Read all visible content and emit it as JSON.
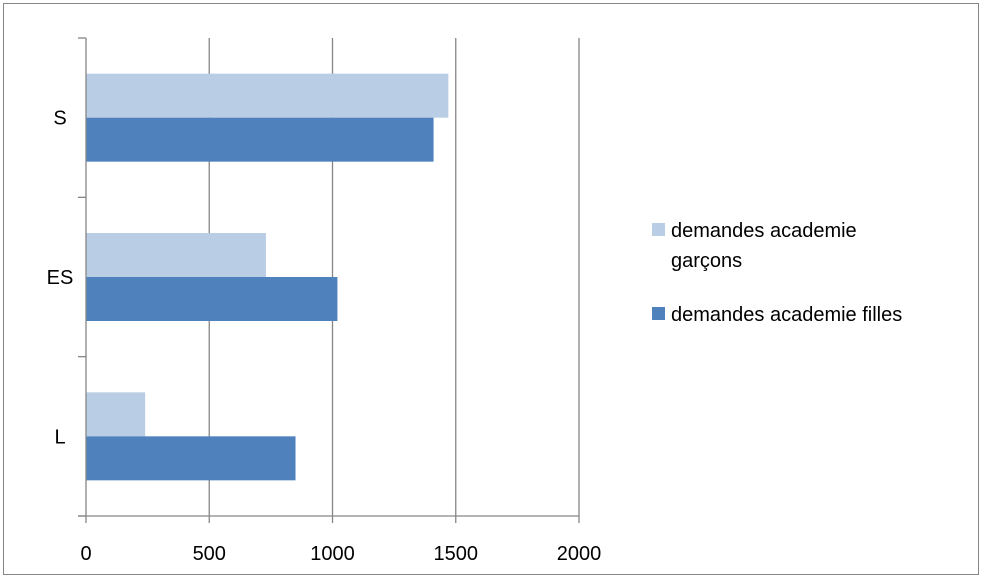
{
  "chart_data": {
    "type": "bar",
    "orientation": "horizontal",
    "categories": [
      "L",
      "ES",
      "S"
    ],
    "series": [
      {
        "name": "demandes academie garçons",
        "legend_lines": [
          "demandes academie",
          "garçons"
        ],
        "color": "#B9CDE5",
        "values": [
          240,
          730,
          1470
        ]
      },
      {
        "name": "demandes academie filles",
        "legend_lines": [
          "demandes academie filles"
        ],
        "color": "#4F81BD",
        "values": [
          850,
          1020,
          1410
        ]
      }
    ],
    "xlim": [
      0,
      2000
    ],
    "xticks": [
      0,
      500,
      1000,
      1500,
      2000
    ],
    "grid": "vertical",
    "legend_position": "right",
    "title": "",
    "xlabel": "",
    "ylabel": ""
  }
}
